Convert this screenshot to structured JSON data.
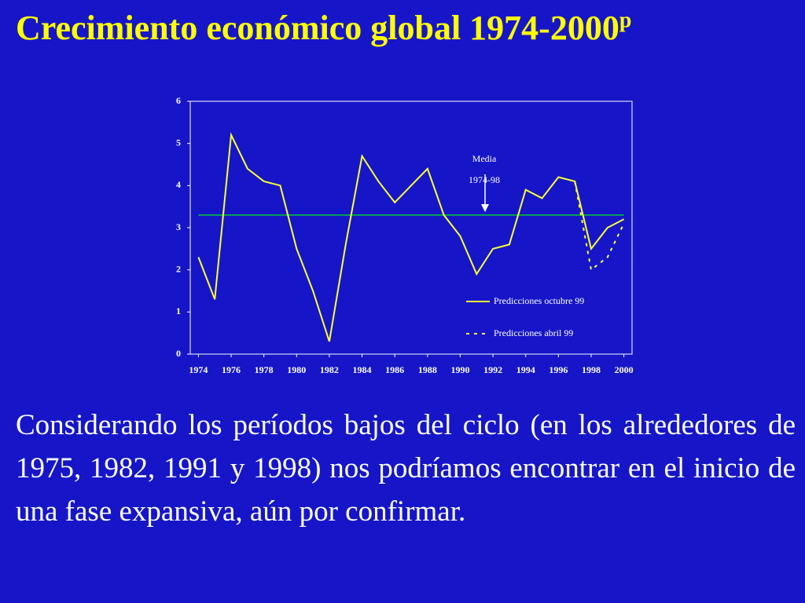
{
  "slide": {
    "title": "Crecimiento económico global 1974-2000",
    "title_superscript": "p",
    "body": "Considerando los períodos bajos del ciclo (en los alrededores de 1975, 1982, 1991 y 1998) nos podríamos encontrar en el inicio de una fase expansiva, aún por confirmar."
  },
  "chart_data": {
    "type": "line",
    "x": [
      1974,
      1975,
      1976,
      1977,
      1978,
      1979,
      1980,
      1981,
      1982,
      1983,
      1984,
      1985,
      1986,
      1987,
      1988,
      1989,
      1990,
      1991,
      1992,
      1993,
      1994,
      1995,
      1996,
      1997,
      1998,
      1999,
      2000
    ],
    "series": [
      {
        "name": "Predicciones octubre 99",
        "color": "#ffff33",
        "dash": false,
        "values": [
          2.3,
          1.3,
          5.2,
          4.4,
          4.1,
          4.0,
          2.5,
          1.5,
          0.3,
          2.6,
          4.7,
          4.1,
          3.6,
          4.0,
          4.4,
          3.3,
          2.8,
          1.9,
          2.5,
          2.6,
          3.9,
          3.7,
          4.2,
          4.1,
          2.5,
          3.0,
          3.2
        ]
      },
      {
        "name": "Predicciones abril 99",
        "color": "#ffff33",
        "dash": true,
        "x": [
          1997,
          1998,
          1999,
          2000
        ],
        "values": [
          4.1,
          2.0,
          2.3,
          3.1
        ]
      }
    ],
    "reference_line": {
      "value": 3.3,
      "color": "#00cc33"
    },
    "annotation": [
      "Media",
      "1974-98"
    ],
    "xlim": [
      1973.5,
      2000.5
    ],
    "ylim": [
      0,
      6
    ],
    "xticks": [
      1974,
      1976,
      1978,
      1980,
      1982,
      1984,
      1986,
      1988,
      1990,
      1992,
      1994,
      1996,
      1998,
      2000
    ],
    "yticks": [
      0,
      1,
      2,
      3,
      4,
      5,
      6
    ]
  }
}
